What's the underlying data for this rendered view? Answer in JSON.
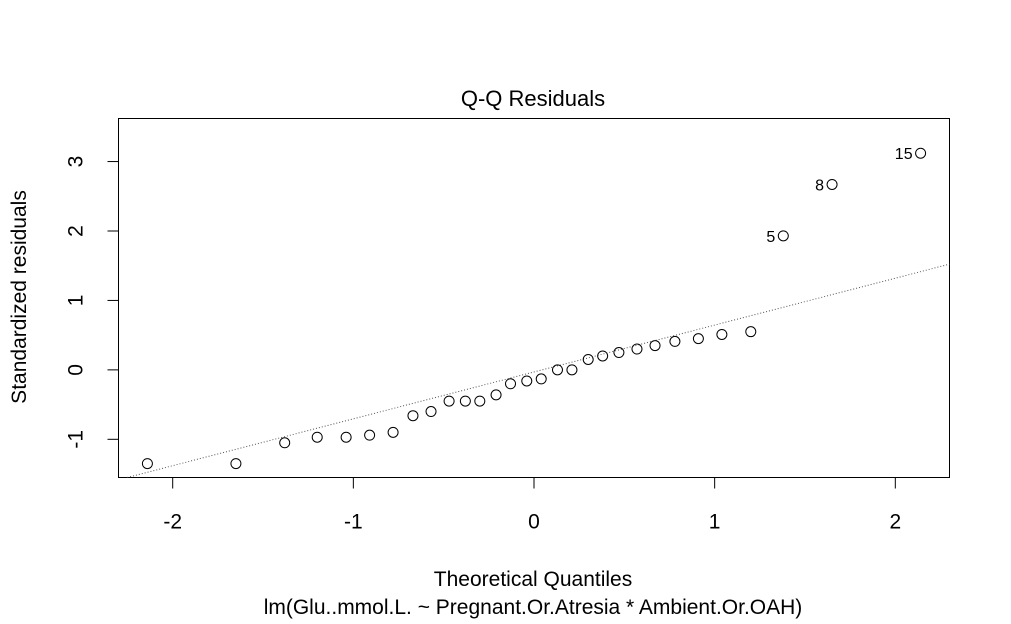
{
  "chart_data": {
    "type": "scatter",
    "title": "Q-Q Residuals",
    "xlabel": "Theoretical Quantiles",
    "subtitle": "lm(Glu..mmol.L. ~ Pregnant.Or.Atresia * Ambient.Or.OAH)",
    "ylabel": "Standardized residuals",
    "xlim": [
      -2.3,
      2.3
    ],
    "ylim": [
      -1.55,
      3.62
    ],
    "xticks": [
      -2,
      -1,
      0,
      1,
      2
    ],
    "yticks": [
      -1,
      0,
      1,
      2,
      3
    ],
    "grid": false,
    "x": [
      -2.14,
      -1.65,
      -1.38,
      -1.2,
      -1.04,
      -0.91,
      -0.78,
      -0.67,
      -0.57,
      -0.47,
      -0.38,
      -0.3,
      -0.21,
      -0.13,
      -0.04,
      0.04,
      0.13,
      0.21,
      0.3,
      0.38,
      0.47,
      0.57,
      0.67,
      0.78,
      0.91,
      1.04,
      1.2,
      1.38,
      1.65,
      2.14
    ],
    "y": [
      -1.35,
      -1.35,
      -1.05,
      -0.97,
      -0.97,
      -0.94,
      -0.9,
      -0.66,
      -0.6,
      -0.45,
      -0.45,
      -0.45,
      -0.36,
      -0.2,
      -0.16,
      -0.13,
      0.0,
      0.0,
      0.15,
      0.2,
      0.25,
      0.3,
      0.35,
      0.41,
      0.45,
      0.51,
      0.55,
      1.93,
      2.67,
      3.12
    ],
    "point_labels": [
      {
        "index": 27,
        "label": "5"
      },
      {
        "index": 28,
        "label": "8"
      },
      {
        "index": 29,
        "label": "15"
      }
    ],
    "reference_line": {
      "intercept": -0.03,
      "slope": 0.675,
      "style": "dotted"
    }
  }
}
